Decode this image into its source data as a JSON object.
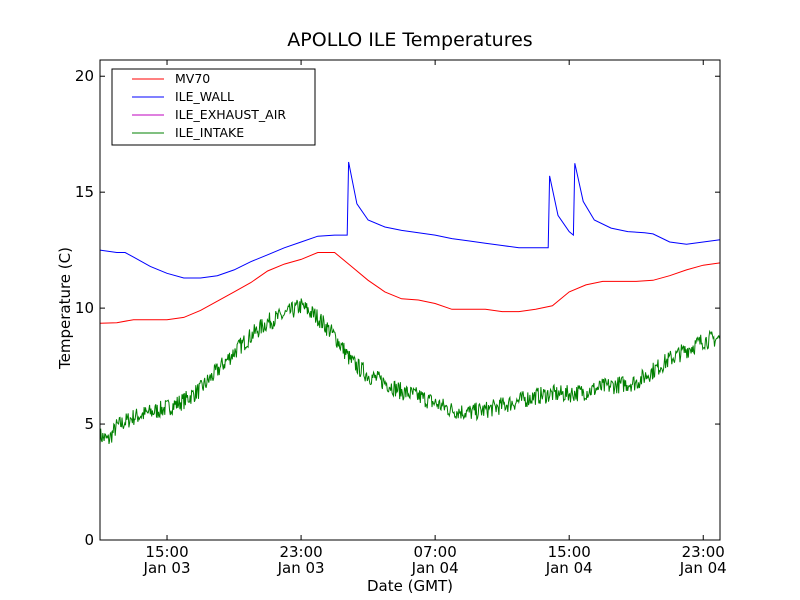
{
  "chart_data": {
    "type": "line",
    "title": "APOLLO ILE Temperatures",
    "xlabel": "Date (GMT)",
    "ylabel": "Temperature (C)",
    "xlim": [
      "2013-01-03 11:00",
      "2013-01-05 00:00"
    ],
    "ylim": [
      0,
      20.7
    ],
    "grid": false,
    "legend_position": "top-left",
    "y_ticks": [
      0,
      5,
      10,
      15,
      20
    ],
    "x_ticks": [
      {
        "time": "Jan 03 15:00",
        "line1": "15:00",
        "line2": "Jan 03"
      },
      {
        "time": "Jan 03 23:00",
        "line1": "23:00",
        "line2": "Jan 03"
      },
      {
        "time": "Jan 04 07:00",
        "line1": "07:00",
        "line2": "Jan 04"
      },
      {
        "time": "Jan 04 15:00",
        "line1": "15:00",
        "line2": "Jan 04"
      },
      {
        "time": "Jan 04 23:00",
        "line1": "23:00",
        "line2": "Jan 04"
      }
    ],
    "series": [
      {
        "name": "MV70",
        "color": "#ff0000",
        "x": [
          "Jan 03 11:00",
          "Jan 03 12:00",
          "Jan 03 13:00",
          "Jan 03 14:00",
          "Jan 03 15:00",
          "Jan 03 16:00",
          "Jan 03 17:00",
          "Jan 03 18:00",
          "Jan 03 19:00",
          "Jan 03 20:00",
          "Jan 03 21:00",
          "Jan 03 22:00",
          "Jan 03 23:00",
          "Jan 04 00:00",
          "Jan 04 01:00",
          "Jan 04 02:00",
          "Jan 04 03:00",
          "Jan 04 04:00",
          "Jan 04 05:00",
          "Jan 04 06:00",
          "Jan 04 07:00",
          "Jan 04 08:00",
          "Jan 04 09:00",
          "Jan 04 10:00",
          "Jan 04 11:00",
          "Jan 04 12:00",
          "Jan 04 13:00",
          "Jan 04 14:00",
          "Jan 04 15:00",
          "Jan 04 16:00",
          "Jan 04 17:00",
          "Jan 04 18:00",
          "Jan 04 19:00",
          "Jan 04 20:00",
          "Jan 04 21:00",
          "Jan 04 22:00",
          "Jan 04 23:00",
          "Jan 05 00:00"
        ],
        "values": [
          9.35,
          9.37,
          9.5,
          9.5,
          9.5,
          9.6,
          9.9,
          10.3,
          10.7,
          11.1,
          11.6,
          11.9,
          12.1,
          12.4,
          12.4,
          11.8,
          11.2,
          10.7,
          10.4,
          10.35,
          10.2,
          9.95,
          9.95,
          9.95,
          9.85,
          9.85,
          9.95,
          10.1,
          10.7,
          11.0,
          11.15,
          11.15,
          11.15,
          11.2,
          11.4,
          11.65,
          11.85,
          11.95
        ]
      },
      {
        "name": "ILE_WALL",
        "color": "#0000ff",
        "x": [
          "Jan 03 11:00",
          "Jan 03 12:00",
          "Jan 03 12:30",
          "Jan 03 13:00",
          "Jan 03 14:00",
          "Jan 03 15:00",
          "Jan 03 16:00",
          "Jan 03 17:00",
          "Jan 03 18:00",
          "Jan 03 19:00",
          "Jan 03 20:00",
          "Jan 03 21:00",
          "Jan 03 22:00",
          "Jan 03 23:00",
          "Jan 04 00:00",
          "Jan 04 01:00",
          "Jan 04 01:45",
          "Jan 04 01:50",
          "Jan 04 02:20",
          "Jan 04 03:00",
          "Jan 04 04:00",
          "Jan 04 05:00",
          "Jan 04 06:00",
          "Jan 04 07:00",
          "Jan 04 08:00",
          "Jan 04 09:00",
          "Jan 04 10:00",
          "Jan 04 11:00",
          "Jan 04 12:00",
          "Jan 04 13:00",
          "Jan 04 13:45",
          "Jan 04 13:50",
          "Jan 04 14:20",
          "Jan 04 15:00",
          "Jan 04 15:15",
          "Jan 04 15:20",
          "Jan 04 15:50",
          "Jan 04 16:30",
          "Jan 04 17:30",
          "Jan 04 18:30",
          "Jan 04 19:30",
          "Jan 04 20:00",
          "Jan 04 21:00",
          "Jan 04 22:00",
          "Jan 04 23:00",
          "Jan 05 00:00"
        ],
        "values": [
          12.5,
          12.4,
          12.4,
          12.2,
          11.8,
          11.5,
          11.3,
          11.3,
          11.4,
          11.65,
          12.0,
          12.3,
          12.6,
          12.85,
          13.1,
          13.15,
          13.15,
          16.3,
          14.5,
          13.8,
          13.5,
          13.35,
          13.25,
          13.15,
          13.0,
          12.9,
          12.8,
          12.7,
          12.6,
          12.6,
          12.6,
          15.7,
          14.0,
          13.3,
          13.15,
          16.25,
          14.6,
          13.8,
          13.45,
          13.3,
          13.25,
          13.2,
          12.85,
          12.75,
          12.85,
          12.95
        ]
      },
      {
        "name": "ILE_EXHAUST_AIR",
        "color": "#bf00bf",
        "x": [],
        "values": []
      },
      {
        "name": "ILE_INTAKE",
        "color": "#008000",
        "x": [
          "Jan 03 11:00",
          "Jan 03 11:30",
          "Jan 03 12:00",
          "Jan 03 13:00",
          "Jan 03 14:00",
          "Jan 03 15:00",
          "Jan 03 16:00",
          "Jan 03 17:00",
          "Jan 03 18:00",
          "Jan 03 19:00",
          "Jan 03 20:00",
          "Jan 03 21:00",
          "Jan 03 22:00",
          "Jan 03 23:00",
          "Jan 04 00:00",
          "Jan 04 01:00",
          "Jan 04 02:00",
          "Jan 04 03:00",
          "Jan 04 04:00",
          "Jan 04 05:00",
          "Jan 04 06:00",
          "Jan 04 07:00",
          "Jan 04 08:00",
          "Jan 04 09:00",
          "Jan 04 10:00",
          "Jan 04 11:00",
          "Jan 04 12:00",
          "Jan 04 13:00",
          "Jan 04 14:00",
          "Jan 04 15:00",
          "Jan 04 16:00",
          "Jan 04 17:00",
          "Jan 04 18:00",
          "Jan 04 19:00",
          "Jan 04 20:00",
          "Jan 04 21:00",
          "Jan 04 22:00",
          "Jan 04 23:00",
          "Jan 05 00:00"
        ],
        "values": [
          4.5,
          4.3,
          4.9,
          5.3,
          5.5,
          5.7,
          6.0,
          6.5,
          7.3,
          8.1,
          8.8,
          9.4,
          9.7,
          10.1,
          9.6,
          8.8,
          7.7,
          7.1,
          6.8,
          6.4,
          6.2,
          5.9,
          5.6,
          5.5,
          5.6,
          5.8,
          6.0,
          6.2,
          6.3,
          6.3,
          6.4,
          6.6,
          6.7,
          6.8,
          7.3,
          7.8,
          8.2,
          8.6,
          8.7
        ]
      }
    ]
  }
}
